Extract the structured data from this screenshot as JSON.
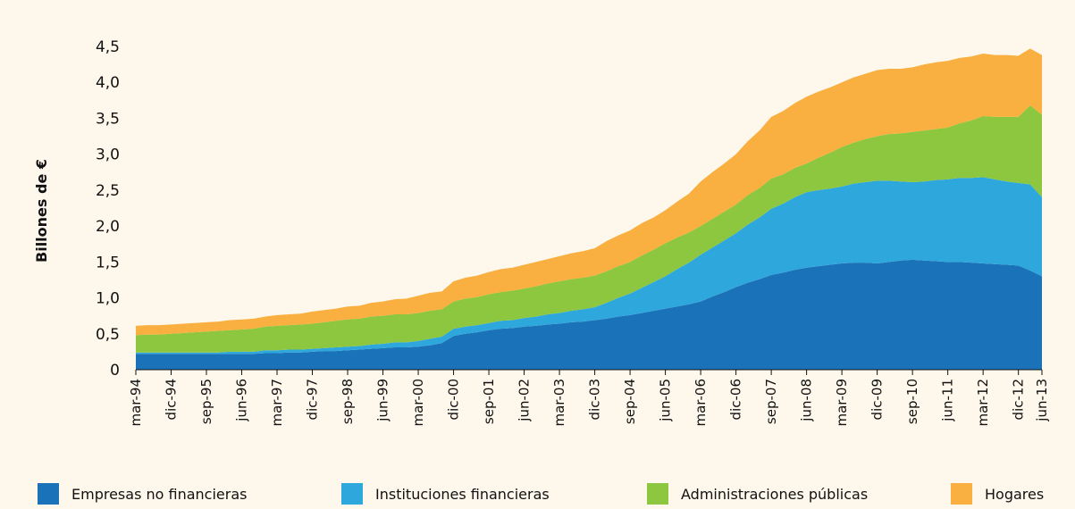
{
  "chart_data": {
    "type": "stacked_area",
    "y_label": "Billones de €",
    "categories": [
      "mar-94",
      null,
      null,
      "dic-94",
      null,
      null,
      "sep-95",
      null,
      null,
      "jun-96",
      null,
      null,
      "mar-97",
      null,
      null,
      "dic-97",
      null,
      null,
      "sep-98",
      null,
      null,
      "jun-99",
      null,
      null,
      "mar-00",
      null,
      null,
      "dic-00",
      null,
      null,
      "sep-01",
      null,
      null,
      "jun-02",
      null,
      null,
      "mar-03",
      null,
      null,
      "dic-03",
      null,
      null,
      "sep-04",
      null,
      null,
      "jun-05",
      null,
      null,
      "mar-06",
      null,
      null,
      "dic-06",
      null,
      null,
      "sep-07",
      null,
      null,
      "jun-08",
      null,
      null,
      "mar-09",
      null,
      null,
      "dic-09",
      null,
      null,
      "sep-10",
      null,
      null,
      "jun-11",
      null,
      null,
      "mar-12",
      null,
      null,
      "dic-12",
      null,
      "jun-13"
    ],
    "series": [
      {
        "name": "Empresas no financieras",
        "color": "#1a72b8",
        "values": [
          0.22,
          0.22,
          0.22,
          0.22,
          0.22,
          0.22,
          0.22,
          0.22,
          0.22,
          0.22,
          0.22,
          0.23,
          0.23,
          0.24,
          0.24,
          0.25,
          0.26,
          0.26,
          0.27,
          0.28,
          0.29,
          0.3,
          0.31,
          0.31,
          0.32,
          0.34,
          0.37,
          0.47,
          0.5,
          0.52,
          0.55,
          0.57,
          0.58,
          0.6,
          0.61,
          0.63,
          0.64,
          0.66,
          0.67,
          0.69,
          0.71,
          0.74,
          0.76,
          0.79,
          0.82,
          0.85,
          0.88,
          0.91,
          0.95,
          1.02,
          1.08,
          1.15,
          1.21,
          1.26,
          1.32,
          1.35,
          1.39,
          1.42,
          1.44,
          1.46,
          1.48,
          1.49,
          1.49,
          1.48,
          1.5,
          1.52,
          1.53,
          1.52,
          1.51,
          1.5,
          1.5,
          1.49,
          1.48,
          1.47,
          1.46,
          1.45,
          1.38,
          1.3
        ]
      },
      {
        "name": "Instituciones financieras",
        "color": "#2ea7dd",
        "values": [
          0.02,
          0.02,
          0.02,
          0.02,
          0.02,
          0.02,
          0.02,
          0.02,
          0.03,
          0.03,
          0.03,
          0.04,
          0.04,
          0.04,
          0.04,
          0.04,
          0.04,
          0.05,
          0.05,
          0.05,
          0.06,
          0.06,
          0.07,
          0.07,
          0.08,
          0.09,
          0.09,
          0.1,
          0.1,
          0.1,
          0.1,
          0.11,
          0.11,
          0.12,
          0.13,
          0.14,
          0.15,
          0.16,
          0.17,
          0.18,
          0.22,
          0.26,
          0.3,
          0.35,
          0.4,
          0.45,
          0.52,
          0.58,
          0.65,
          0.68,
          0.72,
          0.75,
          0.81,
          0.86,
          0.92,
          0.96,
          1.01,
          1.05,
          1.06,
          1.06,
          1.07,
          1.1,
          1.12,
          1.15,
          1.13,
          1.1,
          1.08,
          1.1,
          1.13,
          1.15,
          1.17,
          1.18,
          1.2,
          1.18,
          1.16,
          1.15,
          1.2,
          1.1
        ]
      },
      {
        "name": "Administraciones públicas",
        "color": "#8dc63f",
        "values": [
          0.24,
          0.25,
          0.25,
          0.26,
          0.27,
          0.28,
          0.29,
          0.3,
          0.3,
          0.31,
          0.32,
          0.33,
          0.34,
          0.34,
          0.35,
          0.35,
          0.36,
          0.37,
          0.38,
          0.38,
          0.39,
          0.39,
          0.39,
          0.39,
          0.39,
          0.39,
          0.38,
          0.38,
          0.39,
          0.39,
          0.4,
          0.4,
          0.41,
          0.41,
          0.42,
          0.43,
          0.44,
          0.44,
          0.44,
          0.44,
          0.44,
          0.44,
          0.44,
          0.45,
          0.45,
          0.46,
          0.44,
          0.42,
          0.4,
          0.4,
          0.4,
          0.4,
          0.41,
          0.41,
          0.42,
          0.41,
          0.41,
          0.4,
          0.45,
          0.5,
          0.55,
          0.57,
          0.6,
          0.62,
          0.65,
          0.67,
          0.7,
          0.71,
          0.71,
          0.72,
          0.76,
          0.8,
          0.85,
          0.87,
          0.9,
          0.92,
          1.1,
          1.15
        ]
      },
      {
        "name": "Hogares",
        "color": "#f9b040",
        "values": [
          0.13,
          0.13,
          0.13,
          0.13,
          0.13,
          0.13,
          0.13,
          0.13,
          0.14,
          0.14,
          0.14,
          0.14,
          0.15,
          0.15,
          0.15,
          0.17,
          0.17,
          0.17,
          0.18,
          0.18,
          0.19,
          0.2,
          0.21,
          0.22,
          0.24,
          0.25,
          0.25,
          0.28,
          0.29,
          0.3,
          0.31,
          0.32,
          0.32,
          0.33,
          0.34,
          0.34,
          0.35,
          0.36,
          0.37,
          0.38,
          0.42,
          0.43,
          0.44,
          0.45,
          0.45,
          0.46,
          0.5,
          0.54,
          0.62,
          0.65,
          0.67,
          0.7,
          0.75,
          0.8,
          0.86,
          0.88,
          0.9,
          0.93,
          0.92,
          0.91,
          0.9,
          0.91,
          0.91,
          0.92,
          0.91,
          0.9,
          0.9,
          0.92,
          0.93,
          0.93,
          0.91,
          0.89,
          0.87,
          0.86,
          0.86,
          0.85,
          0.79,
          0.83
        ]
      }
    ],
    "ylim": [
      0,
      4.5
    ],
    "yticks": [
      0,
      {
        "value": 0.5,
        "label": "0,5"
      },
      {
        "value": 1,
        "label": "1,0"
      },
      {
        "value": 1.5,
        "label": "1,5"
      },
      {
        "value": 2,
        "label": "2,0"
      },
      {
        "value": 2.5,
        "label": "2,5"
      },
      {
        "value": 3,
        "label": "3,0"
      },
      {
        "value": 3.5,
        "label": "3,5"
      },
      {
        "value": 4,
        "label": "4,0"
      },
      {
        "value": 4.5,
        "label": "4,5"
      }
    ],
    "grid": false,
    "legend": "bottom"
  }
}
